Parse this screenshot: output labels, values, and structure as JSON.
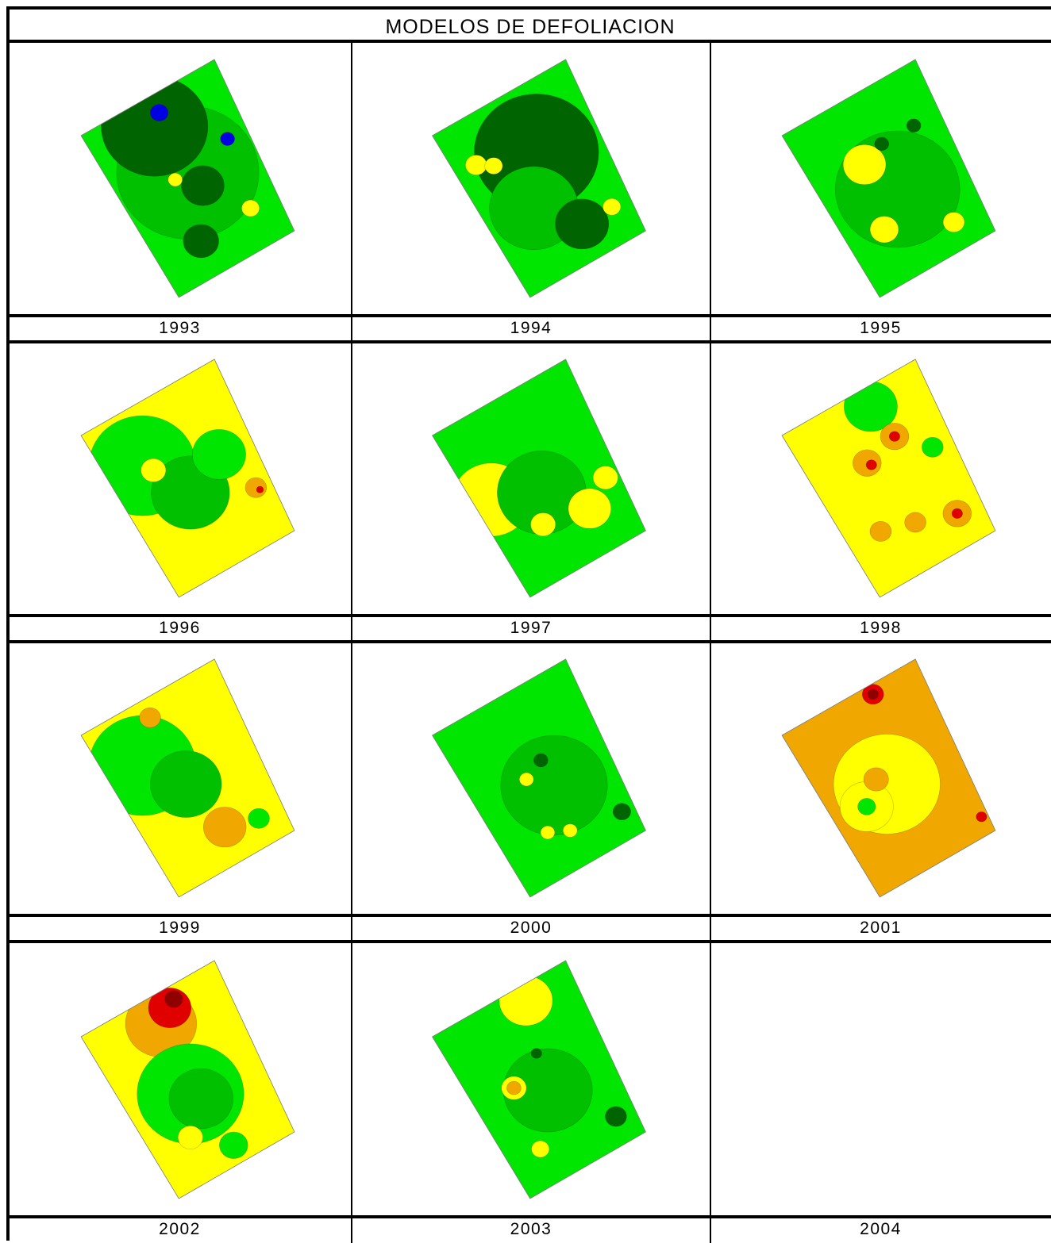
{
  "title": "MODELOS DE DEFOLIACION",
  "years": [
    "1993",
    "1994",
    "1995",
    "1996",
    "1997",
    "1998",
    "1999",
    "2000",
    "2001",
    "2002",
    "2003",
    "2004"
  ],
  "colors": {
    "dark_green": "#006400",
    "green": "#00c000",
    "light_green": "#00e600",
    "yellow": "#ffff00",
    "orange": "#f0a800",
    "red": "#e00000",
    "dark_red": "#900000",
    "blue": "#0000e0"
  },
  "maps": [
    {
      "year": "1993",
      "base": "light_green",
      "patches": [
        [
          "green",
          0.5,
          0.45,
          0.4
        ],
        [
          "dark_green",
          0.45,
          0.15,
          0.3
        ],
        [
          "dark_green",
          0.55,
          0.55,
          0.12
        ],
        [
          "dark_green",
          0.35,
          0.8,
          0.1
        ],
        [
          "blue",
          0.52,
          0.1,
          0.05
        ],
        [
          "blue",
          0.85,
          0.4,
          0.04
        ],
        [
          "yellow",
          0.78,
          0.78,
          0.05
        ],
        [
          "yellow",
          0.4,
          0.45,
          0.04
        ]
      ]
    },
    {
      "year": "1994",
      "base": "light_green",
      "patches": [
        [
          "dark_green",
          0.55,
          0.35,
          0.35
        ],
        [
          "green",
          0.35,
          0.6,
          0.25
        ],
        [
          "dark_green",
          0.6,
          0.8,
          0.15
        ],
        [
          "yellow",
          0.15,
          0.25,
          0.06
        ],
        [
          "yellow",
          0.25,
          0.3,
          0.05
        ],
        [
          "yellow",
          0.85,
          0.8,
          0.05
        ]
      ]
    },
    {
      "year": "1995",
      "base": "light_green",
      "patches": [
        [
          "green",
          0.5,
          0.55,
          0.35
        ],
        [
          "yellow",
          0.38,
          0.35,
          0.12
        ],
        [
          "yellow",
          0.28,
          0.7,
          0.08
        ],
        [
          "yellow",
          0.75,
          0.85,
          0.06
        ],
        [
          "dark_green",
          0.55,
          0.3,
          0.04
        ],
        [
          "dark_green",
          0.8,
          0.3,
          0.04
        ]
      ]
    },
    {
      "year": "1996",
      "base": "yellow",
      "patches": [
        [
          "light_green",
          0.25,
          0.3,
          0.3
        ],
        [
          "green",
          0.45,
          0.55,
          0.22
        ],
        [
          "light_green",
          0.75,
          0.45,
          0.15
        ],
        [
          "orange",
          0.88,
          0.7,
          0.06
        ],
        [
          "red",
          0.9,
          0.72,
          0.02
        ],
        [
          "yellow",
          0.3,
          0.35,
          0.07
        ]
      ]
    },
    {
      "year": "1997",
      "base": "light_green",
      "patches": [
        [
          "yellow",
          0.12,
          0.45,
          0.22
        ],
        [
          "green",
          0.45,
          0.55,
          0.25
        ],
        [
          "yellow",
          0.7,
          0.75,
          0.12
        ],
        [
          "yellow",
          0.35,
          0.7,
          0.07
        ],
        [
          "orange",
          0.92,
          0.65,
          0.04
        ],
        [
          "yellow",
          0.9,
          0.65,
          0.07
        ]
      ]
    },
    {
      "year": "1998",
      "base": "yellow",
      "patches": [
        [
          "light_green",
          0.6,
          0.1,
          0.15
        ],
        [
          "orange",
          0.4,
          0.35,
          0.08
        ],
        [
          "orange",
          0.65,
          0.3,
          0.08
        ],
        [
          "red",
          0.42,
          0.37,
          0.03
        ],
        [
          "red",
          0.65,
          0.3,
          0.03
        ],
        [
          "orange",
          0.25,
          0.7,
          0.06
        ],
        [
          "orange",
          0.5,
          0.75,
          0.06
        ],
        [
          "orange",
          0.8,
          0.82,
          0.08
        ],
        [
          "red",
          0.8,
          0.82,
          0.03
        ],
        [
          "light_green",
          0.85,
          0.45,
          0.06
        ]
      ]
    },
    {
      "year": "1999",
      "base": "yellow",
      "patches": [
        [
          "light_green",
          0.25,
          0.3,
          0.3
        ],
        [
          "green",
          0.45,
          0.5,
          0.2
        ],
        [
          "orange",
          0.55,
          0.8,
          0.12
        ],
        [
          "orange",
          0.45,
          0.1,
          0.06
        ],
        [
          "light_green",
          0.8,
          0.85,
          0.06
        ]
      ]
    },
    {
      "year": "2000",
      "base": "light_green",
      "patches": [
        [
          "green",
          0.55,
          0.55,
          0.3
        ],
        [
          "yellow",
          0.4,
          0.45,
          0.04
        ],
        [
          "yellow",
          0.35,
          0.75,
          0.04
        ],
        [
          "yellow",
          0.5,
          0.8,
          0.04
        ],
        [
          "dark_green",
          0.55,
          0.4,
          0.04
        ],
        [
          "dark_green",
          0.9,
          0.85,
          0.05
        ]
      ]
    },
    {
      "year": "2001",
      "base": "orange",
      "patches": [
        [
          "yellow",
          0.45,
          0.5,
          0.3
        ],
        [
          "yellow",
          0.25,
          0.55,
          0.15
        ],
        [
          "light_green",
          0.25,
          0.55,
          0.05
        ],
        [
          "red",
          0.65,
          0.05,
          0.06
        ],
        [
          "dark_red",
          0.65,
          0.05,
          0.03
        ],
        [
          "red",
          0.95,
          0.9,
          0.03
        ],
        [
          "orange",
          0.4,
          0.45,
          0.07
        ]
      ]
    },
    {
      "year": "2002",
      "base": "yellow",
      "patches": [
        [
          "orange",
          0.5,
          0.15,
          0.2
        ],
        [
          "red",
          0.6,
          0.1,
          0.12
        ],
        [
          "dark_red",
          0.65,
          0.07,
          0.05
        ],
        [
          "light_green",
          0.45,
          0.55,
          0.3
        ],
        [
          "green",
          0.5,
          0.6,
          0.18
        ],
        [
          "yellow",
          0.3,
          0.75,
          0.07
        ],
        [
          "light_green",
          0.55,
          0.9,
          0.08
        ]
      ]
    },
    {
      "year": "2003",
      "base": "light_green",
      "patches": [
        [
          "yellow",
          0.65,
          0.08,
          0.15
        ],
        [
          "green",
          0.5,
          0.55,
          0.25
        ],
        [
          "yellow",
          0.3,
          0.45,
          0.07
        ],
        [
          "orange",
          0.3,
          0.45,
          0.04
        ],
        [
          "yellow",
          0.25,
          0.8,
          0.05
        ],
        [
          "dark_green",
          0.85,
          0.85,
          0.06
        ],
        [
          "dark_green",
          0.55,
          0.35,
          0.03
        ]
      ]
    },
    {
      "year": "2004",
      "base": null,
      "patches": []
    }
  ]
}
